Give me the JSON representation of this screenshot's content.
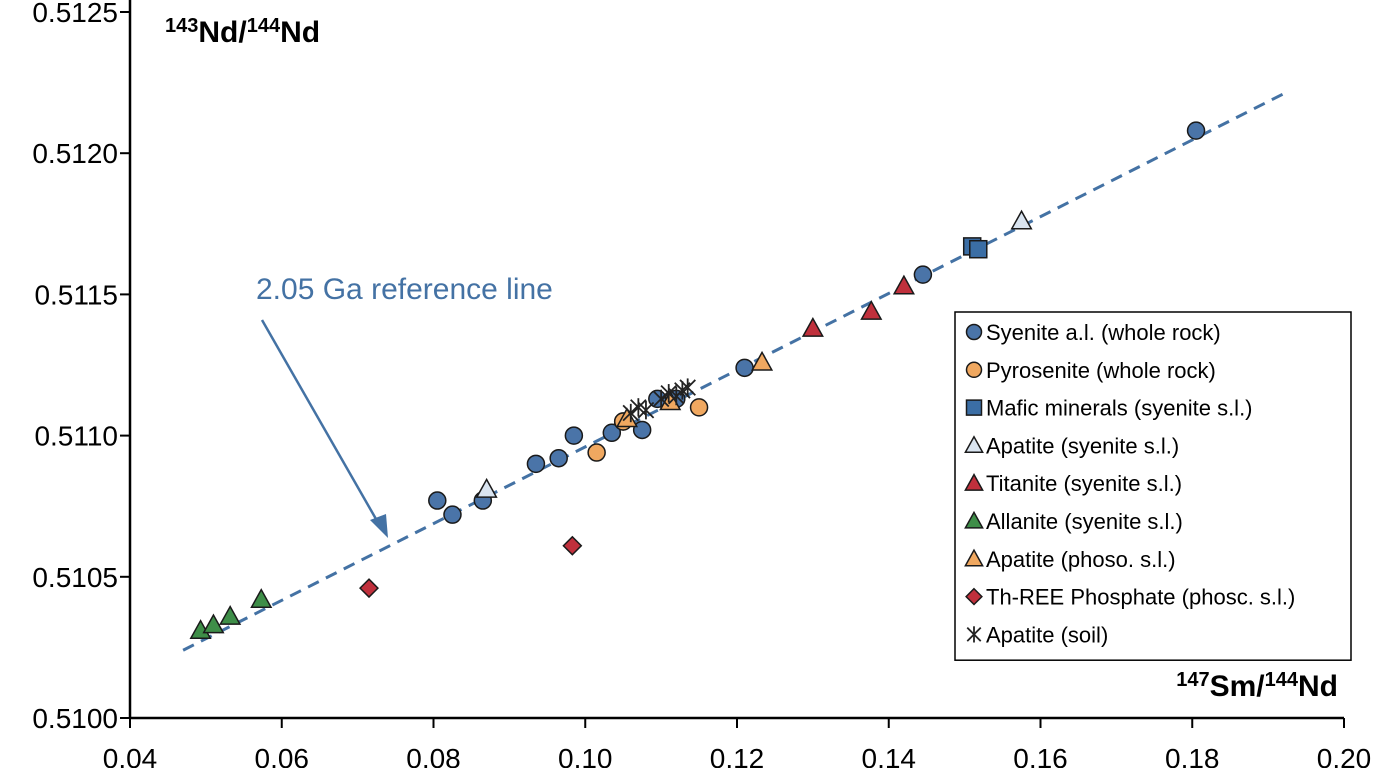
{
  "chart_data": {
    "type": "scatter",
    "xlabel": {
      "sup1": "147",
      "main1": "Sm/",
      "sup2": "144",
      "main2": "Nd"
    },
    "ylabel": {
      "sup1": "143",
      "main1": "Nd/",
      "sup2": "144",
      "main2": "Nd"
    },
    "xlim": [
      0.04,
      0.2
    ],
    "ylim": [
      0.51,
      0.5125
    ],
    "xticks": [
      "0.04",
      "0.06",
      "0.08",
      "0.10",
      "0.12",
      "0.14",
      "0.16",
      "0.18",
      "0.20"
    ],
    "yticks": [
      "0.5100",
      "0.5105",
      "0.5110",
      "0.5115",
      "0.5120",
      "0.5125"
    ],
    "grid": false,
    "legend_position": "right",
    "reference_line": {
      "label": "2.05 Ga reference line",
      "color": "#4472a4",
      "x": [
        0.047,
        0.192
      ],
      "y": [
        0.51024,
        0.51221
      ]
    },
    "series": [
      {
        "name": "Syenite a.l. (whole rock)",
        "marker": "circle",
        "fill": "#4a74a8",
        "x": [
          0.0805,
          0.0825,
          0.0865,
          0.0935,
          0.0965,
          0.0985,
          0.1035,
          0.105,
          0.1075,
          0.1095,
          0.112,
          0.121,
          0.1445,
          0.1805
        ],
        "y": [
          0.51077,
          0.51072,
          0.51077,
          0.5109,
          0.51092,
          0.511,
          0.51101,
          0.51105,
          0.51102,
          0.51113,
          0.51113,
          0.51124,
          0.51157,
          0.51208
        ]
      },
      {
        "name": "Pyrosenite (whole rock)",
        "marker": "circle",
        "fill": "#f0a860",
        "x": [
          0.1015,
          0.105,
          0.115
        ],
        "y": [
          0.51094,
          0.51105,
          0.5111
        ]
      },
      {
        "name": "Mafic minerals (syenite s.l.)",
        "marker": "square",
        "fill": "#3b6ea5",
        "x": [
          0.151,
          0.1518
        ],
        "y": [
          0.51167,
          0.51166
        ]
      },
      {
        "name": "Apatite (syenite s.l.)",
        "marker": "triangle",
        "fill": "#d9e4f0",
        "x": [
          0.087,
          0.1575
        ],
        "y": [
          0.51081,
          0.51176
        ]
      },
      {
        "name": "Titanite (syenite s.l.)",
        "marker": "triangle",
        "fill": "#c0303c",
        "x": [
          0.13,
          0.1377,
          0.142
        ],
        "y": [
          0.51138,
          0.51144,
          0.51153
        ]
      },
      {
        "name": "Allanite (syenite s.l.)",
        "marker": "triangle",
        "fill": "#3e8e48",
        "x": [
          0.0493,
          0.051,
          0.0532,
          0.0573
        ],
        "y": [
          0.51031,
          0.51033,
          0.51036,
          0.51042
        ]
      },
      {
        "name": "Apatite (phoso. s.l.)",
        "marker": "triangle",
        "fill": "#f0a860",
        "x": [
          0.1055,
          0.1112,
          0.1233
        ],
        "y": [
          0.51106,
          0.51112,
          0.51126
        ]
      },
      {
        "name": "Th-REE Phosphate (phosc. s.l.)",
        "marker": "diamond",
        "fill": "#c0303c",
        "x": [
          0.0715,
          0.0983
        ],
        "y": [
          0.51046,
          0.51061
        ]
      },
      {
        "name": "Apatite (soil)",
        "marker": "asterisk",
        "fill": "#222222",
        "x": [
          0.106,
          0.107,
          0.108,
          0.11,
          0.111,
          0.112,
          0.1128,
          0.1135
        ],
        "y": [
          0.51108,
          0.5111,
          0.51109,
          0.51113,
          0.51115,
          0.51114,
          0.51116,
          0.51117
        ]
      }
    ]
  }
}
